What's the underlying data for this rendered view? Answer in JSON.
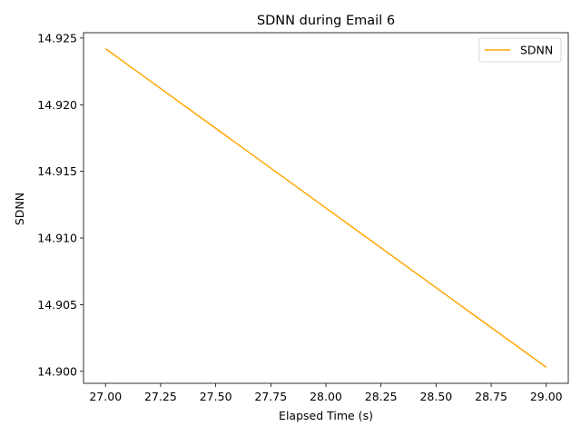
{
  "chart_data": {
    "type": "line",
    "title": "SDNN during Email 6",
    "xlabel": "Elapsed Time (s)",
    "ylabel": "SDNN",
    "xlim": [
      26.9,
      29.1
    ],
    "ylim": [
      14.8991,
      14.9254
    ],
    "xticks": [
      27.0,
      27.25,
      27.5,
      27.75,
      28.0,
      28.25,
      28.5,
      28.75,
      29.0
    ],
    "xtick_labels": [
      "27.00",
      "27.25",
      "27.50",
      "27.75",
      "28.00",
      "28.25",
      "28.50",
      "28.75",
      "29.00"
    ],
    "yticks": [
      14.9,
      14.905,
      14.91,
      14.915,
      14.92,
      14.925
    ],
    "ytick_labels": [
      "14.900",
      "14.905",
      "14.910",
      "14.915",
      "14.920",
      "14.925"
    ],
    "grid": false,
    "legend_position": "top-right",
    "series": [
      {
        "name": "SDNN",
        "color": "#FFA500",
        "x": [
          27.0,
          29.0
        ],
        "y": [
          14.9242,
          14.9003
        ]
      }
    ]
  }
}
